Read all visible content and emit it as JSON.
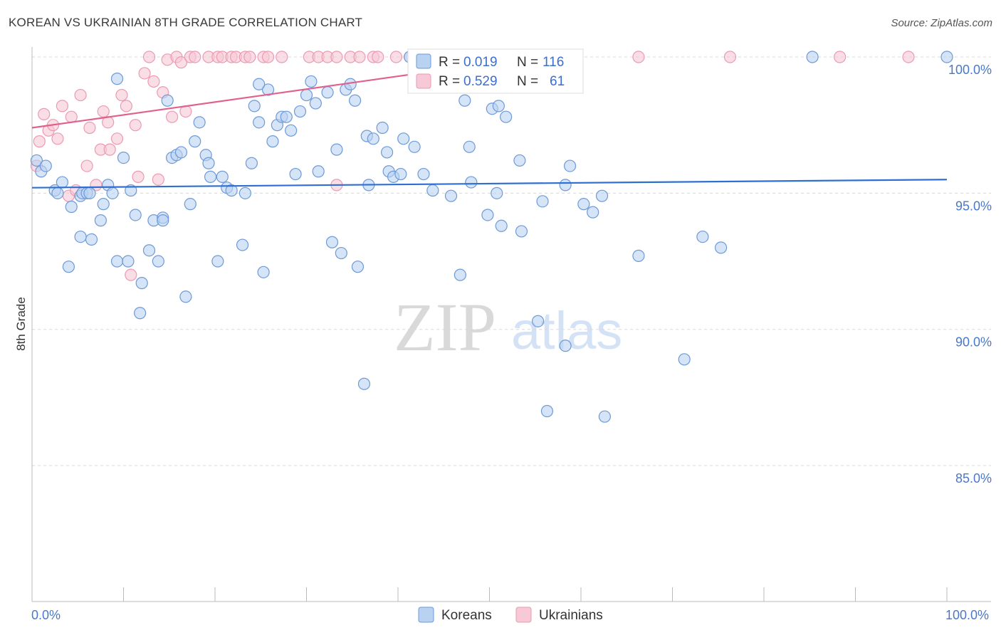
{
  "title": "KOREAN VS UKRAINIAN 8TH GRADE CORRELATION CHART",
  "source": "Source: ZipAtlas.com",
  "watermark": {
    "zip": "ZIP",
    "atlas": "atlas"
  },
  "colors": {
    "koreans_fill": "#b9d2f2",
    "koreans_stroke": "#6e9ad8",
    "koreans_line": "#2f6fd0",
    "ukrainians_fill": "#f7c8d6",
    "ukrainians_stroke": "#ec9ab4",
    "ukrainians_line": "#e0608e",
    "grid": "#d8d8d8",
    "tick_label": "#4a78c8"
  },
  "legend": {
    "r_label": "R =",
    "n_label": "N =",
    "rows": [
      {
        "series": "Koreans",
        "r": "0.019",
        "n": "116"
      },
      {
        "series": "Ukrainians",
        "r": "0.529",
        "n": "61"
      }
    ]
  },
  "chart_data": {
    "type": "scatter",
    "title": "KOREAN VS UKRAINIAN 8TH GRADE CORRELATION CHART",
    "xlabel": "",
    "ylabel": "8th Grade",
    "xlim": [
      0,
      100
    ],
    "ylim": [
      80,
      100.5
    ],
    "x_tick_labels": [
      "0.0%",
      "100.0%"
    ],
    "y_ticks": [
      {
        "value": 100,
        "label": "100.0%"
      },
      {
        "value": 95,
        "label": "95.0%"
      },
      {
        "value": 90,
        "label": "90.0%"
      },
      {
        "value": 85,
        "label": "85.0%"
      }
    ],
    "grid": true,
    "legend_position": "top-center",
    "series": [
      {
        "name": "Koreans",
        "trend": {
          "x": [
            0,
            100
          ],
          "y": [
            95.2,
            95.5
          ]
        },
        "points": [
          [
            0.5,
            96.2
          ],
          [
            1.0,
            95.8
          ],
          [
            1.5,
            96.0
          ],
          [
            2.5,
            95.1
          ],
          [
            2.8,
            95.0
          ],
          [
            3.3,
            95.4
          ],
          [
            4.3,
            94.5
          ],
          [
            5.3,
            94.9
          ],
          [
            5.5,
            95.0
          ],
          [
            6.0,
            95.0
          ],
          [
            4.0,
            92.3
          ],
          [
            5.3,
            93.4
          ],
          [
            6.5,
            93.3
          ],
          [
            7.5,
            94.0
          ],
          [
            7.8,
            94.6
          ],
          [
            8.3,
            95.3
          ],
          [
            8.8,
            95.0
          ],
          [
            9.3,
            92.5
          ],
          [
            10.0,
            96.3
          ],
          [
            10.5,
            92.5
          ],
          [
            10.8,
            95.1
          ],
          [
            11.3,
            94.2
          ],
          [
            12.0,
            91.7
          ],
          [
            11.8,
            90.6
          ],
          [
            12.8,
            92.9
          ],
          [
            13.3,
            94.0
          ],
          [
            13.8,
            92.5
          ],
          [
            14.3,
            94.1
          ],
          [
            14.8,
            98.4
          ],
          [
            15.3,
            96.3
          ],
          [
            15.8,
            96.4
          ],
          [
            16.3,
            96.5
          ],
          [
            16.8,
            91.2
          ],
          [
            17.3,
            94.6
          ],
          [
            17.8,
            96.9
          ],
          [
            18.3,
            97.6
          ],
          [
            19.0,
            96.4
          ],
          [
            19.3,
            96.1
          ],
          [
            19.5,
            95.6
          ],
          [
            20.3,
            92.5
          ],
          [
            20.8,
            95.6
          ],
          [
            21.3,
            95.2
          ],
          [
            21.8,
            95.1
          ],
          [
            23.0,
            93.1
          ],
          [
            23.3,
            95.0
          ],
          [
            24.0,
            96.1
          ],
          [
            24.3,
            98.2
          ],
          [
            24.8,
            97.6
          ],
          [
            25.3,
            92.1
          ],
          [
            25.8,
            98.8
          ],
          [
            26.3,
            96.9
          ],
          [
            26.8,
            97.5
          ],
          [
            27.3,
            97.8
          ],
          [
            27.8,
            97.8
          ],
          [
            28.3,
            97.3
          ],
          [
            28.8,
            95.7
          ],
          [
            29.3,
            98.0
          ],
          [
            30.0,
            98.6
          ],
          [
            30.5,
            99.1
          ],
          [
            31.0,
            98.3
          ],
          [
            31.3,
            95.8
          ],
          [
            32.3,
            98.7
          ],
          [
            32.8,
            93.2
          ],
          [
            33.3,
            96.6
          ],
          [
            33.8,
            92.8
          ],
          [
            34.3,
            98.8
          ],
          [
            34.8,
            99.0
          ],
          [
            35.3,
            98.4
          ],
          [
            35.6,
            92.3
          ],
          [
            36.3,
            88.0
          ],
          [
            36.6,
            97.1
          ],
          [
            37.3,
            97.0
          ],
          [
            38.3,
            97.4
          ],
          [
            38.8,
            96.5
          ],
          [
            39.0,
            95.8
          ],
          [
            39.5,
            95.6
          ],
          [
            40.3,
            95.7
          ],
          [
            40.6,
            97.0
          ],
          [
            41.3,
            100.0
          ],
          [
            41.8,
            96.7
          ],
          [
            42.8,
            95.7
          ],
          [
            43.8,
            95.1
          ],
          [
            45.8,
            94.9
          ],
          [
            46.8,
            92.0
          ],
          [
            47.3,
            98.4
          ],
          [
            47.8,
            96.7
          ],
          [
            48.0,
            95.4
          ],
          [
            49.8,
            94.2
          ],
          [
            50.3,
            98.1
          ],
          [
            50.8,
            95.0
          ],
          [
            51.0,
            98.2
          ],
          [
            51.3,
            93.8
          ],
          [
            51.8,
            97.8
          ],
          [
            53.3,
            96.2
          ],
          [
            53.5,
            93.6
          ],
          [
            55.3,
            90.3
          ],
          [
            55.8,
            94.7
          ],
          [
            56.3,
            87.0
          ],
          [
            58.3,
            89.4
          ],
          [
            58.3,
            95.3
          ],
          [
            58.8,
            96.0
          ],
          [
            60.3,
            94.6
          ],
          [
            61.3,
            94.3
          ],
          [
            62.3,
            94.9
          ],
          [
            62.6,
            86.8
          ],
          [
            66.3,
            92.7
          ],
          [
            71.3,
            88.9
          ],
          [
            73.3,
            93.4
          ],
          [
            75.3,
            93.0
          ],
          [
            85.3,
            100.0
          ],
          [
            100.0,
            100.0
          ],
          [
            24.8,
            99.0
          ],
          [
            9.3,
            99.2
          ],
          [
            36.8,
            95.3
          ],
          [
            14.3,
            94.0
          ],
          [
            6.3,
            95.0
          ]
        ]
      },
      {
        "name": "Ukrainians",
        "trend": {
          "x": [
            0,
            55
          ],
          "y": [
            97.4,
            100.0
          ]
        },
        "points": [
          [
            0.5,
            96.0
          ],
          [
            0.8,
            96.9
          ],
          [
            1.3,
            97.9
          ],
          [
            1.8,
            97.3
          ],
          [
            2.3,
            97.5
          ],
          [
            2.8,
            97.0
          ],
          [
            3.3,
            98.2
          ],
          [
            4.0,
            94.9
          ],
          [
            4.3,
            97.8
          ],
          [
            4.8,
            95.1
          ],
          [
            5.3,
            98.6
          ],
          [
            6.0,
            96.0
          ],
          [
            6.3,
            97.4
          ],
          [
            7.0,
            95.3
          ],
          [
            7.5,
            96.6
          ],
          [
            7.8,
            98.0
          ],
          [
            8.3,
            97.6
          ],
          [
            8.5,
            96.6
          ],
          [
            9.3,
            97.0
          ],
          [
            9.8,
            98.6
          ],
          [
            10.3,
            98.2
          ],
          [
            10.8,
            92.0
          ],
          [
            11.3,
            97.5
          ],
          [
            11.6,
            95.6
          ],
          [
            12.3,
            99.4
          ],
          [
            12.8,
            100.0
          ],
          [
            13.3,
            99.1
          ],
          [
            13.8,
            95.5
          ],
          [
            14.3,
            98.7
          ],
          [
            14.8,
            99.9
          ],
          [
            15.3,
            97.8
          ],
          [
            15.8,
            100.0
          ],
          [
            16.3,
            99.8
          ],
          [
            16.8,
            98.0
          ],
          [
            17.3,
            100.0
          ],
          [
            17.8,
            100.0
          ],
          [
            19.3,
            100.0
          ],
          [
            20.3,
            100.0
          ],
          [
            20.8,
            100.0
          ],
          [
            21.8,
            100.0
          ],
          [
            22.3,
            100.0
          ],
          [
            23.3,
            100.0
          ],
          [
            23.8,
            100.0
          ],
          [
            25.3,
            100.0
          ],
          [
            25.8,
            100.0
          ],
          [
            27.3,
            100.0
          ],
          [
            30.3,
            100.0
          ],
          [
            31.3,
            100.0
          ],
          [
            32.3,
            100.0
          ],
          [
            33.3,
            100.0
          ],
          [
            34.8,
            100.0
          ],
          [
            35.8,
            100.0
          ],
          [
            37.3,
            100.0
          ],
          [
            37.8,
            100.0
          ],
          [
            39.8,
            100.0
          ],
          [
            41.3,
            100.0
          ],
          [
            33.3,
            95.3
          ],
          [
            66.3,
            100.0
          ],
          [
            76.3,
            100.0
          ],
          [
            88.3,
            100.0
          ],
          [
            95.8,
            100.0
          ]
        ]
      }
    ]
  }
}
